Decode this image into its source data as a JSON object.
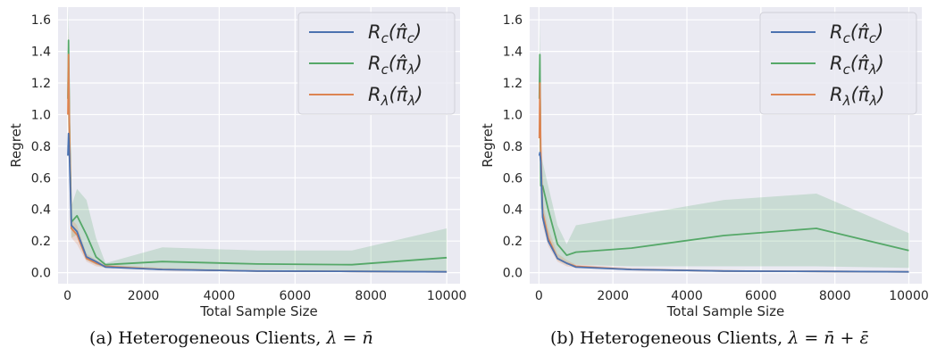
{
  "chart_data": [
    {
      "type": "line",
      "xlabel": "Total Sample Size",
      "ylabel": "Regret",
      "xlim": [
        -250,
        10350
      ],
      "ylim": [
        -0.07,
        1.68
      ],
      "xticks": [
        0,
        2000,
        4000,
        6000,
        8000,
        10000
      ],
      "yticks": [
        0.0,
        0.2,
        0.4,
        0.6,
        0.8,
        1.0,
        1.2,
        1.4,
        1.6
      ],
      "grid": true,
      "legend": "top-right",
      "caption": {
        "prefix": "(a) Heterogeneous Clients, ",
        "math": "λ = n̄"
      },
      "series": [
        {
          "name": "R_c(π̂_c)",
          "color": "#4c72b0",
          "x": [
            10,
            25,
            50,
            100,
            250,
            500,
            750,
            1000,
            2500,
            5000,
            7500,
            10000
          ],
          "y": [
            0.74,
            0.88,
            0.75,
            0.3,
            0.26,
            0.1,
            0.07,
            0.035,
            0.02,
            0.01,
            0.008,
            0.005
          ],
          "lower": null,
          "upper": null
        },
        {
          "name": "R_c(π̂_λ)",
          "color": "#55a868",
          "x": [
            10,
            25,
            50,
            100,
            250,
            500,
            750,
            1000,
            2500,
            5000,
            7500,
            10000
          ],
          "y": [
            1.1,
            1.47,
            0.95,
            0.32,
            0.36,
            0.24,
            0.1,
            0.05,
            0.07,
            0.055,
            0.05,
            0.095
          ],
          "lower": [
            0.8,
            1.2,
            0.6,
            0.22,
            0.24,
            0.08,
            0.05,
            0.03,
            0.02,
            0.02,
            0.01,
            0.01
          ],
          "upper": [
            1.4,
            1.68,
            1.3,
            0.42,
            0.53,
            0.46,
            0.22,
            0.06,
            0.16,
            0.14,
            0.14,
            0.28
          ]
        },
        {
          "name": "R_λ(π̂_λ)",
          "color": "#dd8452",
          "x": [
            10,
            25,
            50,
            100,
            250,
            500,
            750,
            1000,
            2500,
            5000,
            7500,
            10000
          ],
          "y": [
            1.0,
            1.38,
            0.9,
            0.28,
            0.24,
            0.09,
            0.06,
            0.04,
            0.02,
            0.01,
            0.008,
            0.005
          ],
          "lower": [
            0.7,
            1.1,
            0.7,
            0.22,
            0.18,
            0.07,
            0.04,
            0.03,
            0.015,
            0.008,
            0.005,
            0.003
          ],
          "upper": [
            1.3,
            1.55,
            1.1,
            0.34,
            0.3,
            0.12,
            0.08,
            0.05,
            0.03,
            0.015,
            0.012,
            0.008
          ]
        }
      ]
    },
    {
      "type": "line",
      "xlabel": "Total Sample Size",
      "ylabel": "Regret",
      "xlim": [
        -250,
        10350
      ],
      "ylim": [
        -0.07,
        1.68
      ],
      "xticks": [
        0,
        2000,
        4000,
        6000,
        8000,
        10000
      ],
      "yticks": [
        0.0,
        0.2,
        0.4,
        0.6,
        0.8,
        1.0,
        1.2,
        1.4,
        1.6
      ],
      "grid": true,
      "legend": "top-right",
      "caption": {
        "prefix": "(b) Heterogeneous Clients, ",
        "math": "λ = n̄ + ε̄"
      },
      "series": [
        {
          "name": "R_c(π̂_c)",
          "color": "#4c72b0",
          "x": [
            10,
            25,
            50,
            100,
            250,
            500,
            750,
            1000,
            2500,
            5000,
            7500,
            10000
          ],
          "y": [
            0.74,
            0.76,
            0.7,
            0.35,
            0.2,
            0.09,
            0.06,
            0.035,
            0.02,
            0.01,
            0.008,
            0.005
          ],
          "lower": null,
          "upper": null
        },
        {
          "name": "R_c(π̂_λ)",
          "color": "#55a868",
          "x": [
            10,
            25,
            50,
            100,
            250,
            500,
            750,
            1000,
            2500,
            5000,
            7500,
            10000
          ],
          "y": [
            1.1,
            1.38,
            0.55,
            0.55,
            0.4,
            0.18,
            0.11,
            0.13,
            0.155,
            0.235,
            0.28,
            0.14
          ],
          "lower": [
            0.8,
            1.05,
            0.4,
            0.4,
            0.22,
            0.08,
            0.05,
            0.05,
            0.04,
            0.04,
            0.04,
            0.03
          ],
          "upper": [
            1.35,
            1.6,
            0.78,
            0.7,
            0.55,
            0.3,
            0.18,
            0.3,
            0.36,
            0.46,
            0.5,
            0.25
          ]
        },
        {
          "name": "R_λ(π̂_λ)",
          "color": "#dd8452",
          "x": [
            10,
            25,
            50,
            100,
            250,
            500,
            750,
            1000,
            2500,
            5000,
            7500,
            10000
          ],
          "y": [
            0.85,
            1.2,
            0.78,
            0.38,
            0.22,
            0.09,
            0.06,
            0.04,
            0.02,
            0.01,
            0.008,
            0.005
          ],
          "lower": [
            0.6,
            1.0,
            0.6,
            0.3,
            0.17,
            0.07,
            0.04,
            0.03,
            0.015,
            0.008,
            0.005,
            0.003
          ],
          "upper": [
            1.1,
            1.35,
            0.95,
            0.45,
            0.28,
            0.12,
            0.08,
            0.05,
            0.03,
            0.015,
            0.012,
            0.008
          ]
        }
      ]
    }
  ]
}
